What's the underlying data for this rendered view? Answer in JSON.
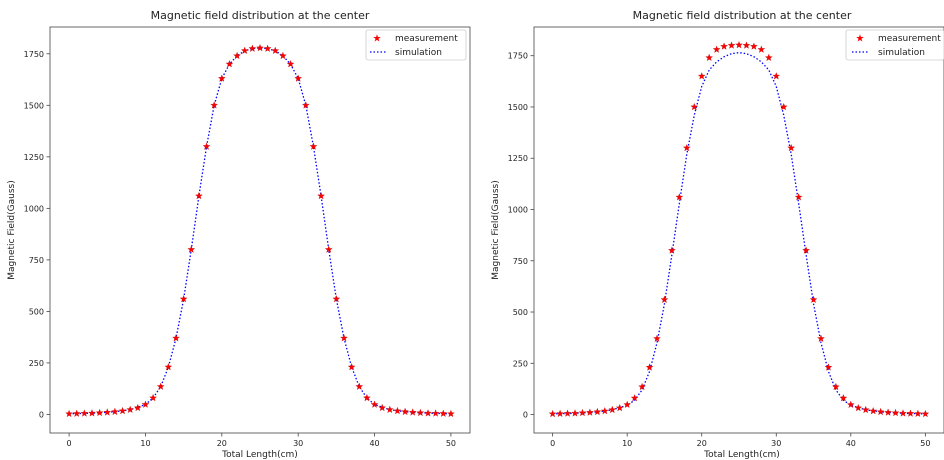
{
  "chart_data": [
    {
      "type": "line",
      "title": "Magnetic field distribution at the center",
      "xlabel": "Total Length(cm)",
      "ylabel": "Magnetic Field(Gauss)",
      "xlim": [
        -2.5,
        52.5
      ],
      "ylim": [
        -90,
        1880
      ],
      "xticks": [
        0,
        10,
        20,
        30,
        40,
        50
      ],
      "yticks": [
        0,
        250,
        500,
        750,
        1000,
        1250,
        1500,
        1750
      ],
      "legend": "top-right",
      "series": [
        {
          "name": "measurement",
          "marker": "star",
          "color": "#ff0000",
          "x": [
            0,
            1,
            2,
            3,
            4,
            5,
            6,
            7,
            8,
            9,
            10,
            11,
            12,
            13,
            14,
            15,
            16,
            17,
            18,
            19,
            20,
            21,
            22,
            23,
            24,
            25,
            26,
            27,
            28,
            29,
            30,
            31,
            32,
            33,
            34,
            35,
            36,
            37,
            38,
            39,
            40,
            41,
            42,
            43,
            44,
            45,
            46,
            47,
            48,
            49,
            50
          ],
          "y": [
            3,
            4,
            5,
            6,
            8,
            10,
            13,
            17,
            23,
            32,
            48,
            80,
            135,
            230,
            370,
            560,
            800,
            1060,
            1300,
            1500,
            1630,
            1700,
            1740,
            1765,
            1775,
            1778,
            1775,
            1765,
            1740,
            1700,
            1630,
            1500,
            1300,
            1060,
            800,
            560,
            370,
            230,
            135,
            80,
            48,
            32,
            23,
            17,
            13,
            10,
            8,
            6,
            5,
            4,
            3
          ]
        },
        {
          "name": "simulation",
          "style": "dotted",
          "color": "#0000ff",
          "x": [
            0,
            2,
            4,
            6,
            8,
            10,
            11,
            12,
            13,
            14,
            15,
            16,
            17,
            18,
            19,
            20,
            21,
            22,
            23,
            24,
            25,
            26,
            27,
            28,
            29,
            30,
            31,
            32,
            33,
            34,
            35,
            36,
            37,
            38,
            39,
            40,
            42,
            44,
            46,
            48,
            50
          ],
          "y": [
            3,
            5,
            8,
            13,
            23,
            48,
            80,
            135,
            230,
            370,
            560,
            800,
            1060,
            1300,
            1500,
            1630,
            1700,
            1740,
            1765,
            1775,
            1778,
            1775,
            1765,
            1740,
            1700,
            1630,
            1500,
            1300,
            1060,
            800,
            560,
            370,
            230,
            135,
            80,
            48,
            23,
            13,
            8,
            5,
            3
          ]
        }
      ]
    },
    {
      "type": "line",
      "title": "Magnetic field distribution at the center",
      "xlabel": "Total Length(cm)",
      "ylabel": "Magnetic Field(Gauss)",
      "xlim": [
        -2.5,
        52.5
      ],
      "ylim": [
        -90,
        1890
      ],
      "xticks": [
        0,
        10,
        20,
        30,
        40,
        50
      ],
      "yticks": [
        0,
        250,
        500,
        750,
        1000,
        1250,
        1500,
        1750
      ],
      "legend": "top-right",
      "series": [
        {
          "name": "measurement",
          "marker": "star",
          "color": "#ff0000",
          "x": [
            0,
            1,
            2,
            3,
            4,
            5,
            6,
            7,
            8,
            9,
            10,
            11,
            12,
            13,
            14,
            15,
            16,
            17,
            18,
            19,
            20,
            21,
            22,
            23,
            24,
            25,
            26,
            27,
            28,
            29,
            30,
            31,
            32,
            33,
            34,
            35,
            36,
            37,
            38,
            39,
            40,
            41,
            42,
            43,
            44,
            45,
            46,
            47,
            48,
            49,
            50
          ],
          "y": [
            3,
            4,
            5,
            6,
            8,
            10,
            13,
            17,
            23,
            32,
            48,
            80,
            135,
            230,
            370,
            560,
            800,
            1060,
            1300,
            1500,
            1650,
            1740,
            1780,
            1795,
            1800,
            1802,
            1800,
            1795,
            1780,
            1740,
            1650,
            1500,
            1300,
            1060,
            800,
            560,
            370,
            230,
            135,
            80,
            48,
            32,
            23,
            17,
            13,
            10,
            8,
            6,
            5,
            4,
            3
          ]
        },
        {
          "name": "simulation",
          "style": "dotted",
          "color": "#0000ff",
          "x": [
            0,
            2,
            4,
            6,
            8,
            10,
            11,
            12,
            13,
            14,
            15,
            16,
            17,
            18,
            19,
            20,
            21,
            22,
            23,
            24,
            25,
            26,
            27,
            28,
            29,
            30,
            31,
            32,
            33,
            34,
            35,
            36,
            37,
            38,
            39,
            40,
            42,
            44,
            46,
            48,
            50
          ],
          "y": [
            3,
            5,
            8,
            13,
            23,
            45,
            70,
            120,
            210,
            350,
            540,
            780,
            1030,
            1270,
            1460,
            1600,
            1680,
            1720,
            1745,
            1760,
            1765,
            1760,
            1745,
            1720,
            1680,
            1600,
            1460,
            1270,
            1030,
            780,
            540,
            350,
            210,
            120,
            70,
            45,
            23,
            13,
            8,
            5,
            3
          ]
        }
      ]
    }
  ]
}
